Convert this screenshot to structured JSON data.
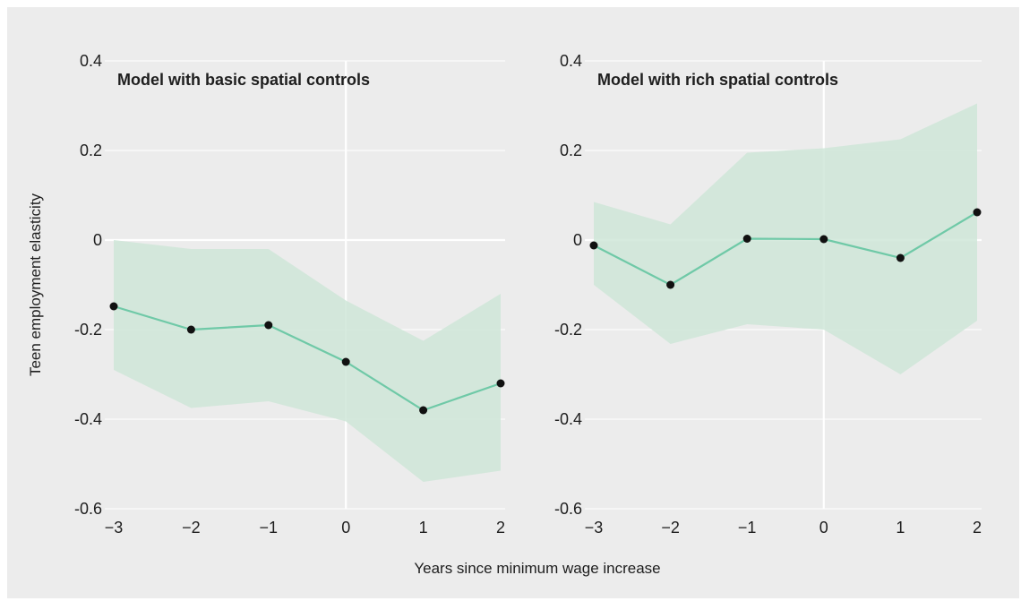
{
  "chart_data": {
    "type": "line",
    "ylabel": "Teen employment elasticity",
    "xlabel": "Years since minimum wage increase",
    "xlim": [
      -3,
      2
    ],
    "ylim": [
      -0.6,
      0.4
    ],
    "x_ticks": [
      -3,
      -2,
      -1,
      0,
      1,
      2
    ],
    "x_tick_labels": [
      "−3",
      "−2",
      "−1",
      "0",
      "1",
      "2"
    ],
    "y_ticks": [
      -0.6,
      -0.4,
      -0.2,
      0,
      0.2,
      0.4
    ],
    "y_tick_labels": [
      "-0.6",
      "-0.4",
      "-0.2",
      "0",
      "0.2",
      "0.4"
    ],
    "grid": true,
    "colors": {
      "background": "#ececec",
      "line": "#6fc9a7",
      "band": "#cfe6d8",
      "point": "#111111",
      "grid": "#ffffff"
    },
    "panels": [
      {
        "title": "Model with basic spatial controls",
        "x": [
          -3,
          -2,
          -1,
          0,
          1,
          2
        ],
        "estimate": [
          -0.148,
          -0.2,
          -0.19,
          -0.272,
          -0.38,
          -0.32
        ],
        "ci_upper": [
          0.0,
          -0.02,
          -0.02,
          -0.135,
          -0.225,
          -0.12
        ],
        "ci_lower": [
          -0.29,
          -0.375,
          -0.36,
          -0.405,
          -0.54,
          -0.515
        ]
      },
      {
        "title": "Model with rich spatial controls",
        "x": [
          -3,
          -2,
          -1,
          0,
          1,
          2
        ],
        "estimate": [
          -0.012,
          -0.1,
          0.003,
          0.002,
          -0.04,
          0.062
        ],
        "ci_upper": [
          0.085,
          0.035,
          0.195,
          0.205,
          0.225,
          0.305
        ],
        "ci_lower": [
          -0.1,
          -0.232,
          -0.188,
          -0.2,
          -0.3,
          -0.18
        ]
      }
    ]
  }
}
